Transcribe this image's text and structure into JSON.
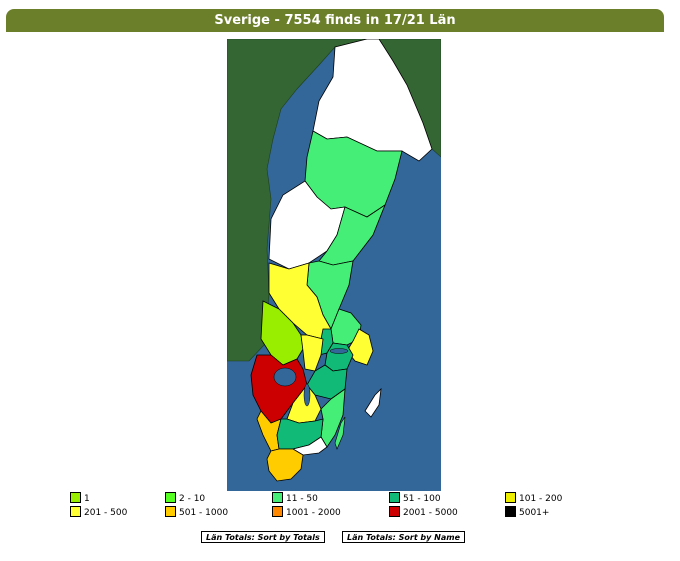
{
  "page_title": "Sverige - 7554 finds in 17/21 Län",
  "colors": {
    "title_bar": "#6b7f2a",
    "sea": "#336699",
    "neighbor_land": "#336633",
    "no_finds": "#ffffff",
    "range_1": "#99ee00",
    "range_2_10": "#55ff22",
    "range_11_50": "#44ee77",
    "range_51_100": "#11bb77",
    "range_101_200": "#eeee00",
    "range_201_500": "#ffff33",
    "range_501_1000": "#ffcc00",
    "range_1001_2000": "#ff8800",
    "range_2001_5000": "#cc0000",
    "range_5001_plus": "#000000"
  },
  "legend": [
    {
      "label": "1",
      "color": "#99ee00"
    },
    {
      "label": "2 - 10",
      "color": "#55ff22"
    },
    {
      "label": "11 - 50",
      "color": "#44ee77"
    },
    {
      "label": "51 - 100",
      "color": "#11bb77"
    },
    {
      "label": "101 - 200",
      "color": "#eeee00"
    },
    {
      "label": "201 - 500",
      "color": "#ffff33"
    },
    {
      "label": "501 - 1000",
      "color": "#ffcc00"
    },
    {
      "label": "1001 - 2000",
      "color": "#ff8800"
    },
    {
      "label": "2001 - 5000",
      "color": "#cc0000"
    },
    {
      "label": "5001+",
      "color": "#000000"
    }
  ],
  "buttons": {
    "sort_totals": "Län Totals: Sort by Totals",
    "sort_name": "Län Totals: Sort by Name"
  }
}
